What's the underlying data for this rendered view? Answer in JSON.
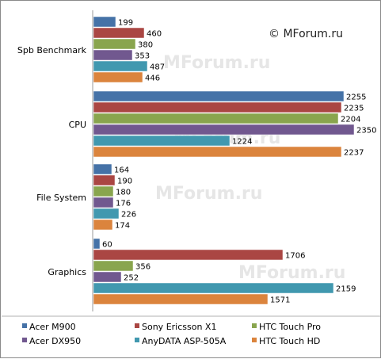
{
  "copyright": "© MForum.ru",
  "watermark": "MForum.ru",
  "chart_data": {
    "type": "bar",
    "orientation": "horizontal",
    "categories": [
      "Spb Benchmark",
      "CPU",
      "File System",
      "Graphics"
    ],
    "series": [
      {
        "name": "Acer M900",
        "color": "#4572a7",
        "values": [
          199,
          2255,
          164,
          60
        ]
      },
      {
        "name": "Sony Ericsson X1",
        "color": "#aa4643",
        "values": [
          460,
          2235,
          190,
          1706
        ]
      },
      {
        "name": "HTC Touch Pro",
        "color": "#89a54e",
        "values": [
          380,
          2204,
          180,
          356
        ]
      },
      {
        "name": "Acer DX950",
        "color": "#71588f",
        "values": [
          353,
          2350,
          176,
          252
        ]
      },
      {
        "name": "AnyDATA ASP-505A",
        "color": "#4198af",
        "values": [
          487,
          1224,
          226,
          2159
        ]
      },
      {
        "name": "HTC Touch HD",
        "color": "#db843d",
        "values": [
          446,
          2237,
          174,
          1571
        ]
      }
    ],
    "xlim": [
      0,
      2500
    ],
    "grid": false,
    "legend_position": "bottom",
    "data_labels": true
  }
}
